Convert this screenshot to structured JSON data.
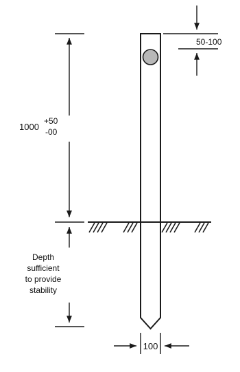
{
  "height_dimension": {
    "nominal": "1000",
    "upper_tolerance": "+50",
    "lower_tolerance": "-00"
  },
  "top_offset_dimension": {
    "label": "50-100"
  },
  "width_dimension": {
    "label": "100"
  },
  "depth_note": {
    "lines": [
      "Depth",
      "sufficient",
      "to provide",
      "stability"
    ]
  },
  "colors": {
    "line": "#1a1a1a",
    "reflector_dot": "#b8b8b8"
  }
}
